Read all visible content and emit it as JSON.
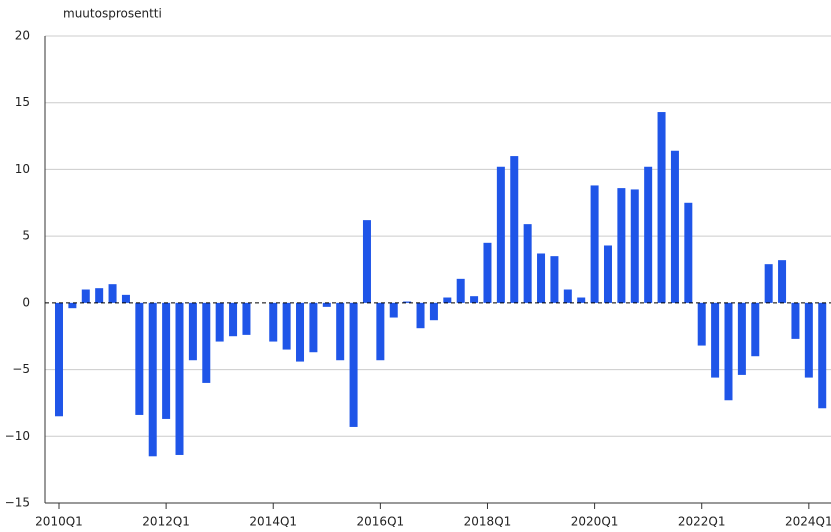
{
  "chart_data": {
    "type": "bar",
    "y_label": "muutosprosentti",
    "categories": [
      "2010Q1",
      null,
      null,
      null,
      null,
      null,
      null,
      null,
      "2012Q1",
      null,
      null,
      null,
      null,
      null,
      null,
      null,
      "2014Q1",
      null,
      null,
      null,
      null,
      null,
      null,
      null,
      "2016Q1",
      null,
      null,
      null,
      null,
      null,
      null,
      null,
      "2018Q1",
      null,
      null,
      null,
      null,
      null,
      null,
      null,
      "2020Q1",
      null,
      null,
      null,
      null,
      null,
      null,
      null,
      "2022Q1",
      null,
      null,
      null,
      null,
      null,
      null,
      null,
      "2024Q1",
      null
    ],
    "values": [
      -8.5,
      -0.4,
      1.0,
      1.1,
      1.4,
      0.6,
      -8.4,
      -11.5,
      -8.7,
      -11.4,
      -4.3,
      -6.0,
      -2.9,
      -2.5,
      -2.4,
      0,
      -2.9,
      -3.5,
      -4.4,
      -3.7,
      -0.3,
      -4.3,
      -9.3,
      6.2,
      -4.3,
      -1.1,
      0.1,
      -1.9,
      -1.3,
      0.4,
      1.8,
      0.5,
      4.5,
      10.2,
      11.0,
      5.9,
      3.7,
      3.5,
      1.0,
      0.4,
      8.8,
      4.3,
      8.6,
      8.5,
      10.2,
      14.3,
      11.4,
      7.5,
      -3.2,
      -5.6,
      -7.3,
      -5.4,
      -4.0,
      2.9,
      3.2,
      -2.7,
      -5.6,
      -7.9
    ],
    "color": "#1f55e8",
    "ylim": [
      -15,
      20
    ],
    "yticks": [
      {
        "value": -15,
        "label": "−15"
      },
      {
        "value": -10,
        "label": "−10"
      },
      {
        "value": -5,
        "label": "−5"
      },
      0,
      5,
      10,
      15,
      20
    ],
    "grid": true
  }
}
